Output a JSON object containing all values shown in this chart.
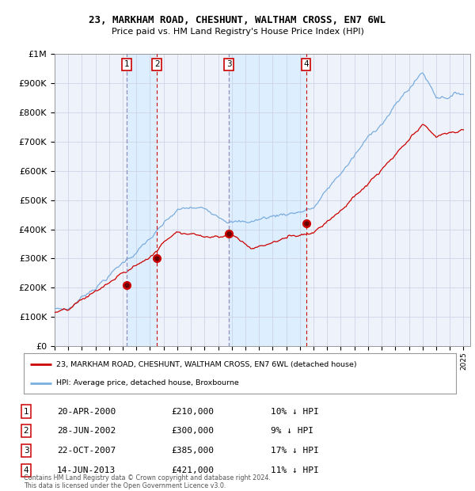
{
  "title": "23, MARKHAM ROAD, CHESHUNT, WALTHAM CROSS, EN7 6WL",
  "subtitle": "Price paid vs. HM Land Registry's House Price Index (HPI)",
  "sale_color": "#cc0000",
  "hpi_color": "#7aadde",
  "shade_color": "#ddeeff",
  "purchases": [
    {
      "label": "1",
      "date_num": 2000.3,
      "price": 210000
    },
    {
      "label": "2",
      "date_num": 2002.5,
      "price": 300000
    },
    {
      "label": "3",
      "date_num": 2007.8,
      "price": 385000
    },
    {
      "label": "4",
      "date_num": 2013.45,
      "price": 421000
    }
  ],
  "xmin": 1995.0,
  "xmax": 2025.5,
  "ymin": 0,
  "ymax": 1000000,
  "yticks": [
    0,
    100000,
    200000,
    300000,
    400000,
    500000,
    600000,
    700000,
    800000,
    900000,
    1000000
  ],
  "ylabels": [
    "£0",
    "£100K",
    "£200K",
    "£300K",
    "£400K",
    "£500K",
    "£600K",
    "£700K",
    "£800K",
    "£900K",
    "£1M"
  ],
  "legend_line1": "23, MARKHAM ROAD, CHESHUNT, WALTHAM CROSS, EN7 6WL (detached house)",
  "legend_line2": "HPI: Average price, detached house, Broxbourne",
  "footer": "Contains HM Land Registry data © Crown copyright and database right 2024.\nThis data is licensed under the Open Government Licence v3.0.",
  "table_rows": [
    {
      "num": "1",
      "date": "20-APR-2000",
      "price": "£210,000",
      "pct": "10% ↓ HPI"
    },
    {
      "num": "2",
      "date": "28-JUN-2002",
      "price": "£300,000",
      "pct": "9% ↓ HPI"
    },
    {
      "num": "3",
      "date": "22-OCT-2007",
      "price": "£385,000",
      "pct": "17% ↓ HPI"
    },
    {
      "num": "4",
      "date": "14-JUN-2013",
      "price": "£421,000",
      "pct": "11% ↓ HPI"
    }
  ]
}
